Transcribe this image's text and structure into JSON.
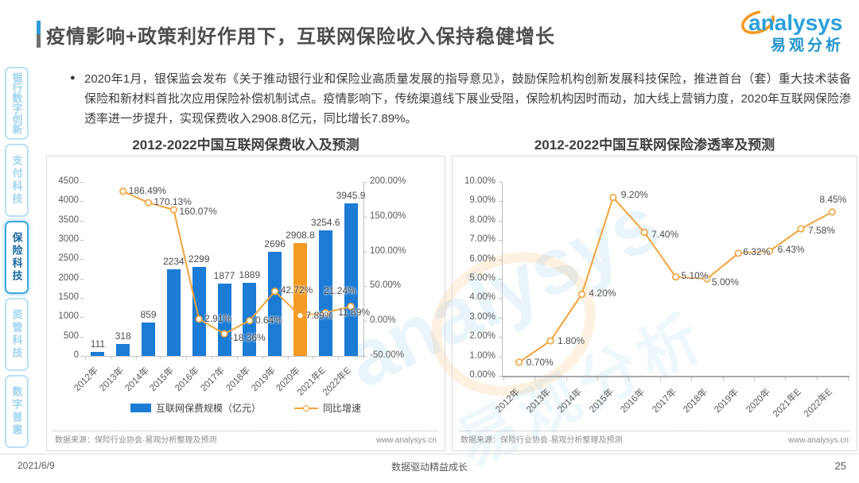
{
  "header": {
    "title": "疫情影响+政策利好作用下，互联网保险收入保持稳健增长",
    "logo": {
      "brand": "analysys",
      "brand_cn": "易观分析"
    }
  },
  "sidebar": {
    "items": [
      {
        "label": "银行数字创新",
        "active": false
      },
      {
        "label": "支付科技",
        "active": false
      },
      {
        "label": "保险科技",
        "active": true
      },
      {
        "label": "资管科技",
        "active": false
      },
      {
        "label": "数字普惠",
        "active": false
      }
    ]
  },
  "bullet": {
    "text": "2020年1月，银保监会发布《关于推动银行业和保险业高质量发展的指导意见》，鼓励保险机构创新发展科技保险，推进首台（套）重大技术装备保险和新材料首批次应用保险补偿机制试点。疫情影响下，传统渠道线下展业受阻，保险机构因时而动，加大线上营销力度，2020年互联网保险渗透率进一步提升，实现保费收入2908.8亿元，同比增长7.89%。"
  },
  "colors": {
    "bar": "#1B7BD5",
    "bar_highlight": "#F59A23",
    "line": "#F2A33A",
    "accent_blue": "#2D9BD8",
    "logo_blue": "#2AA0DA"
  },
  "watermark": {
    "brand": "analysys",
    "brand_cn": "易观分析"
  },
  "chart_data": [
    {
      "type": "bar",
      "title": "2012-2022中国互联网保费收入及预测",
      "categories": [
        "2012年",
        "2013年",
        "2014年",
        "2015年",
        "2016年",
        "2017年",
        "2018年",
        "2019年",
        "2020年",
        "2021年E",
        "2022年E"
      ],
      "series": [
        {
          "name": "互联网保费规模（亿元）",
          "type": "bar",
          "highlight_index": 8,
          "values": [
            111,
            318,
            859,
            2234,
            2299,
            1877,
            1889,
            2696,
            2908.8,
            3254.6,
            3945.9
          ],
          "labels": [
            "111",
            "318",
            "859",
            "2234",
            "2299",
            "1877",
            "1889",
            "2696",
            "2908.8",
            "3254.6",
            "3945.9"
          ]
        },
        {
          "name": "同比增速",
          "type": "line",
          "values": [
            null,
            186.49,
            170.13,
            160.07,
            2.91,
            -18.36,
            0.64,
            42.72,
            7.89,
            11.89,
            21.24
          ],
          "labels": [
            "",
            "186.49%",
            "170.13%",
            "160.07%",
            "2.91%",
            "-18.36%",
            "0.64%",
            "42.72%",
            "7.89%",
            "11.89%",
            "21.24%"
          ]
        }
      ],
      "left_axis": {
        "min": 0,
        "max": 4500,
        "step": 500,
        "ticks": [
          "4500",
          "4000",
          "3500",
          "3000",
          "2500",
          "2000",
          "1500",
          "1000",
          "500",
          "0"
        ]
      },
      "right_axis": {
        "min": -50,
        "max": 200,
        "step": 50,
        "ticks": [
          "200.00%",
          "150.00%",
          "100.00%",
          "50.00%",
          "0.00%",
          "-50.00%"
        ]
      },
      "legend_position": "bottom",
      "grid": false,
      "source": "数据来源：保险行业协会·易观分析整理及预测",
      "url": "www.analysys.cn"
    },
    {
      "type": "line",
      "title": "2012-2022中国互联网保险渗透率及预测",
      "categories": [
        "2012年",
        "2013年",
        "2014年",
        "2015年",
        "2016年",
        "2017年",
        "2018年",
        "2019年",
        "2020年",
        "2021年E",
        "2022年E"
      ],
      "values": [
        0.7,
        1.8,
        4.2,
        9.2,
        7.4,
        5.1,
        5.0,
        6.32,
        6.43,
        7.58,
        8.45
      ],
      "labels": [
        "0.70%",
        "1.80%",
        "4.20%",
        "9.20%",
        "7.40%",
        "5.10%",
        "5.00%",
        "6.32%",
        "6.43%",
        "7.58%",
        "8.45%"
      ],
      "y_axis": {
        "min": 0,
        "max": 10,
        "step": 1,
        "ticks": [
          "10.00%",
          "9.00%",
          "8.00%",
          "7.00%",
          "6.00%",
          "5.00%",
          "4.00%",
          "3.00%",
          "2.00%",
          "1.00%",
          "0.00%"
        ]
      },
      "grid": false,
      "source": "数据来源：保险行业协会·易观分析整理及预测",
      "url": "www.analysys.cn"
    }
  ],
  "footer": {
    "date": "2021/6/9",
    "tagline": "数据驱动精益成长",
    "page": "25"
  }
}
